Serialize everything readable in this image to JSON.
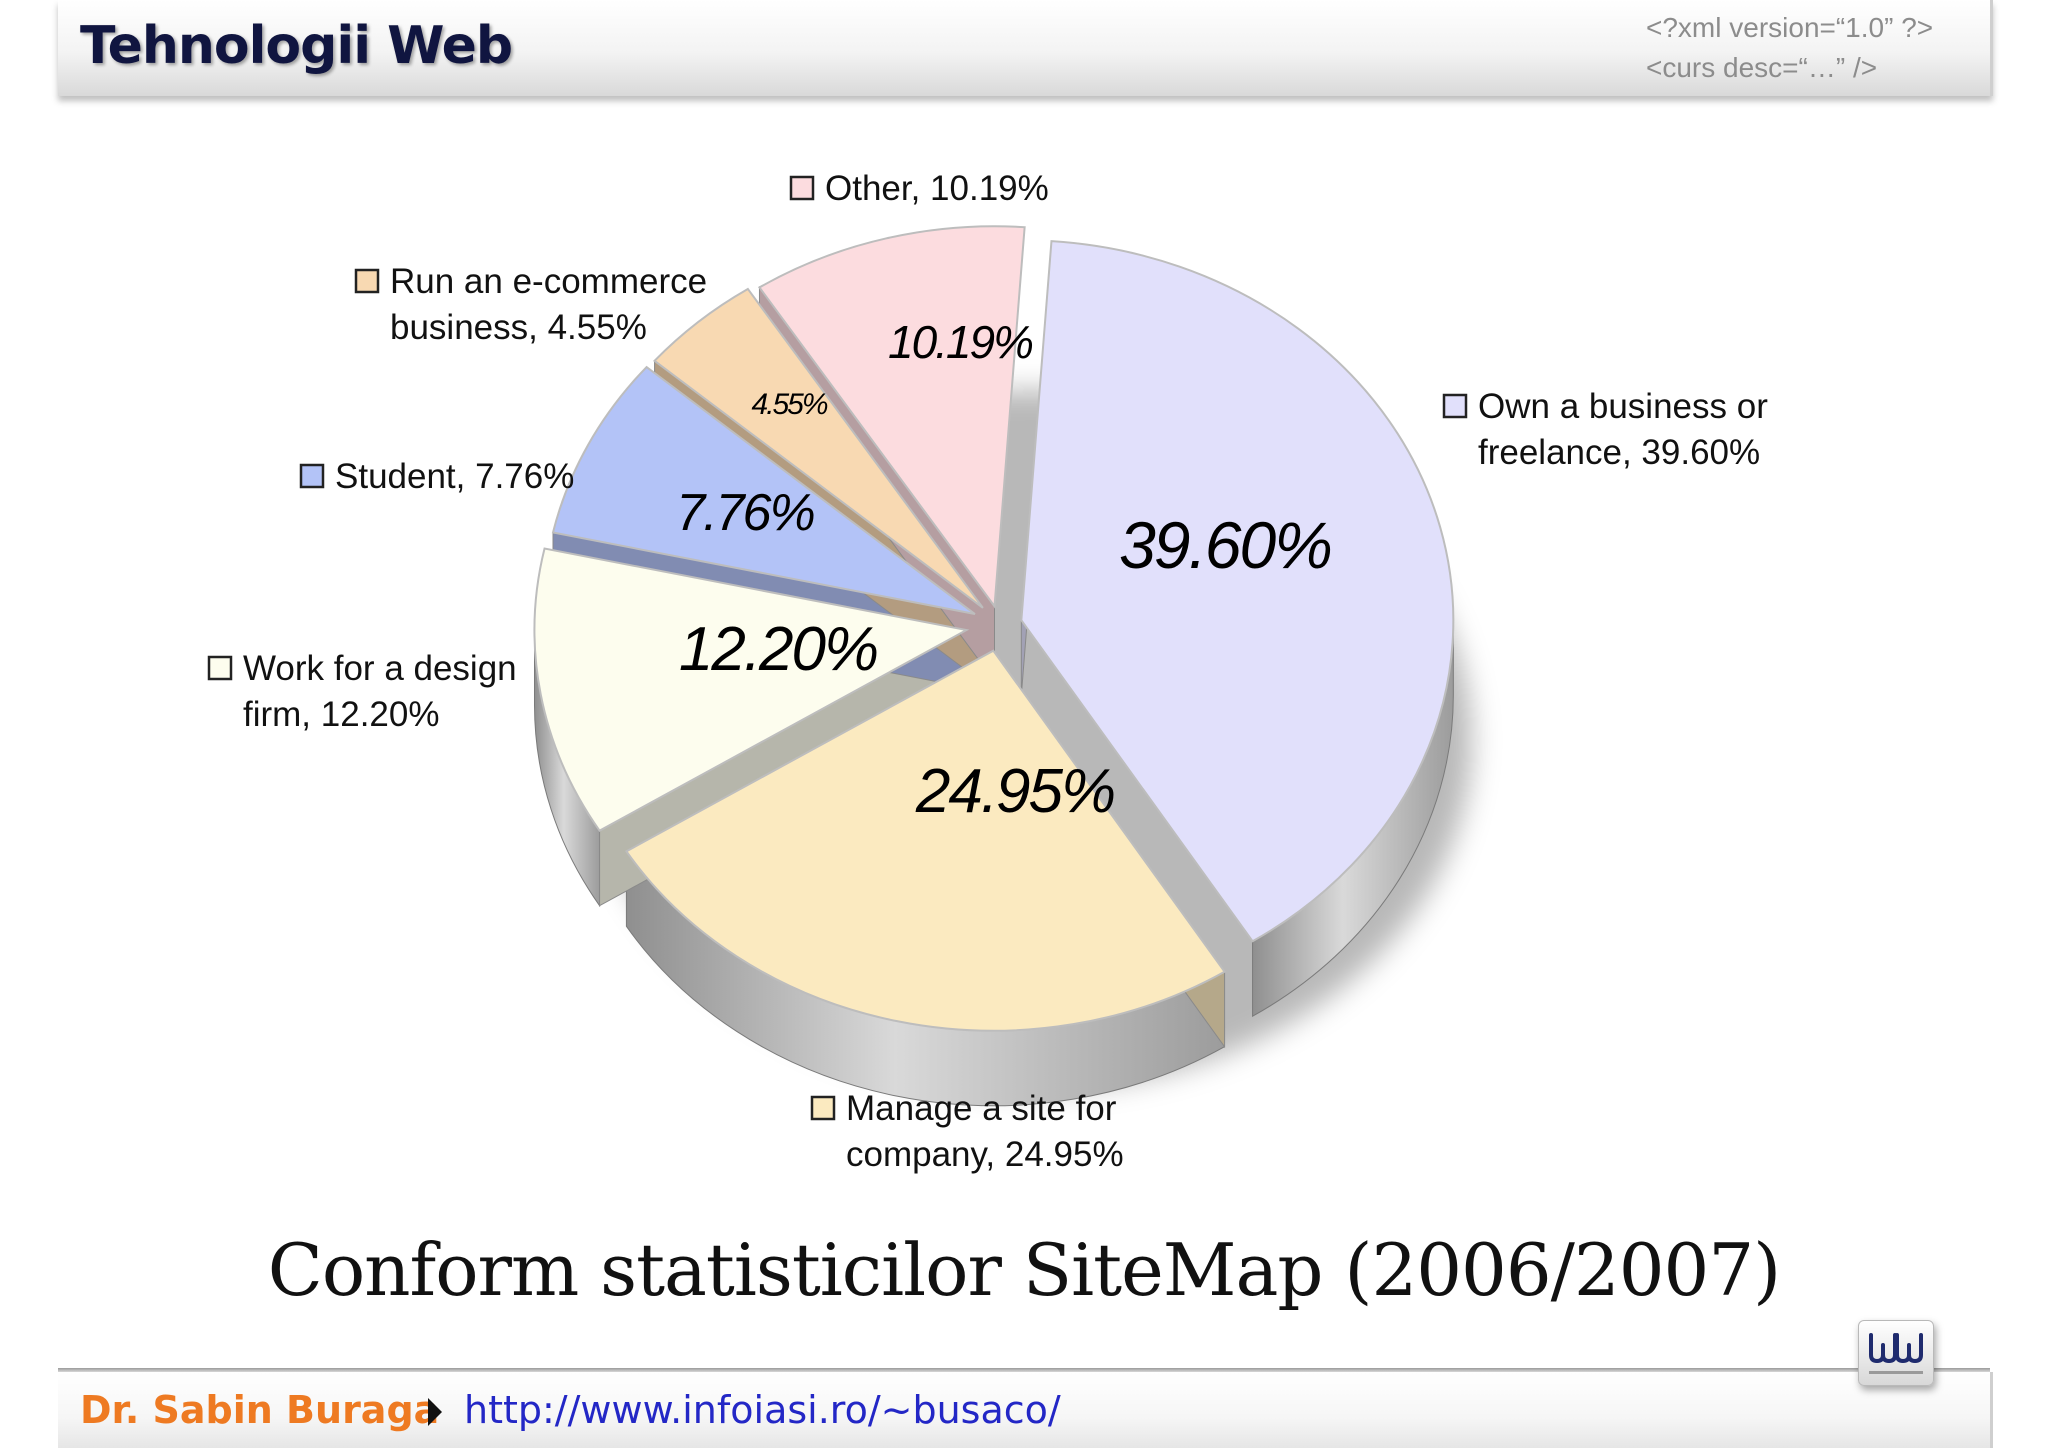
{
  "header": {
    "title": "Tehnologii Web",
    "xml_line1": "<?xml version=“1.0” ?>",
    "xml_line2": "<curs desc=“…” />"
  },
  "chart_data": {
    "type": "pie",
    "title": "",
    "slices": [
      {
        "label": "Own a business or freelance",
        "value": 39.6,
        "inner_label": "39.60%",
        "legend_lines": [
          "Own a business or",
          "freelance, 39.60%"
        ],
        "color": "#e1e0fb"
      },
      {
        "label": "Manage a site for company",
        "value": 24.95,
        "inner_label": "24.95%",
        "legend_lines": [
          "Manage a site for",
          "company, 24.95%"
        ],
        "color": "#fbeac0"
      },
      {
        "label": "Work for a design firm",
        "value": 12.2,
        "inner_label": "12.20%",
        "legend_lines": [
          "Work for a design",
          "firm,  12.20%"
        ],
        "color": "#fdfdee"
      },
      {
        "label": "Student",
        "value": 7.76,
        "inner_label": "7.76%",
        "legend_lines": [
          "Student, 7.76%"
        ],
        "color": "#b3c3f7"
      },
      {
        "label": "Run an e-commerce business",
        "value": 4.55,
        "inner_label": "4.55%",
        "legend_lines": [
          "Run an e-commerce",
          "business, 4.55%"
        ],
        "color": "#f8d9b2"
      },
      {
        "label": "Other",
        "value": 10.19,
        "inner_label": "10.19%",
        "legend_lines": [
          "Other, 10.19%"
        ],
        "color": "#fcdcdf"
      }
    ]
  },
  "caption": "Conform statisticilor SiteMap (2006/2007)",
  "footer": {
    "author": "Dr. Sabin Buraga",
    "url": "http://www.infoiasi.ro/~busaco/"
  }
}
